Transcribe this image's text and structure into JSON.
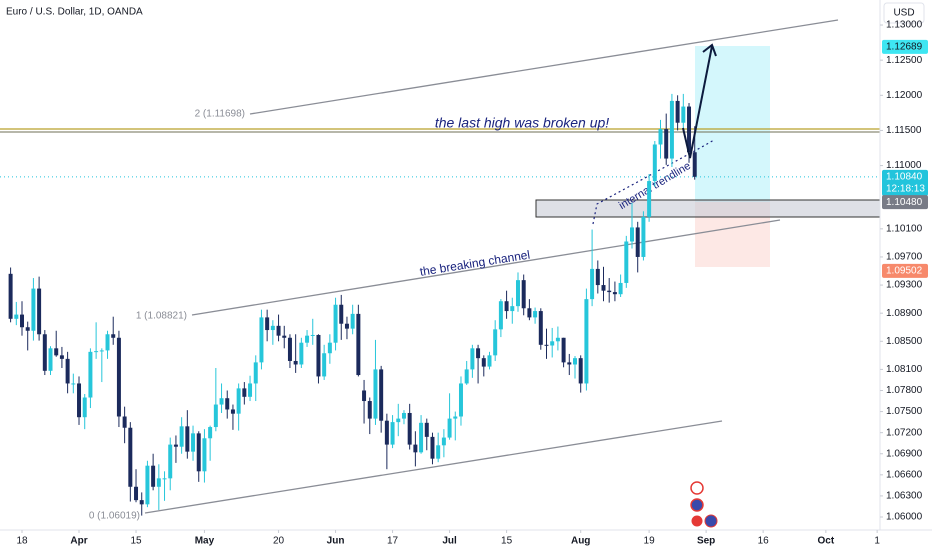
{
  "header": {
    "title": "Euro / U.S. Dollar, 1D, OANDA",
    "currency": "USD"
  },
  "chart_data": {
    "type": "candlestick",
    "up_color": "#26c6da",
    "down_color": "#1b2a5c",
    "grid": false,
    "xlim": [
      -1.86,
      152.5
    ],
    "ylim": [
      1.05815,
      1.13356
    ],
    "xticks": [
      {
        "value": 2,
        "label": "18"
      },
      {
        "value": 12,
        "label": "Apr"
      },
      {
        "value": 22,
        "label": "15"
      },
      {
        "value": 34,
        "label": "May"
      },
      {
        "value": 47,
        "label": "20"
      },
      {
        "value": 57,
        "label": "Jun"
      },
      {
        "value": 67,
        "label": "17"
      },
      {
        "value": 77,
        "label": "Jul"
      },
      {
        "value": 87,
        "label": "15"
      },
      {
        "value": 100,
        "label": "Aug"
      },
      {
        "value": 112,
        "label": "19"
      },
      {
        "value": 122,
        "label": "Sep"
      },
      {
        "value": 132,
        "label": "16"
      },
      {
        "value": 143,
        "label": "Oct"
      },
      {
        "value": 152,
        "label": "1"
      }
    ],
    "yticks": [
      {
        "value": 1.13,
        "label": "1.13000"
      },
      {
        "value": 1.125,
        "label": "1.12500"
      },
      {
        "value": 1.12,
        "label": "1.12000"
      },
      {
        "value": 1.115,
        "label": "1.11500"
      },
      {
        "value": 1.11,
        "label": "1.11000"
      },
      {
        "value": 1.101,
        "label": "1.10100"
      },
      {
        "value": 1.097,
        "label": "1.09700"
      },
      {
        "value": 1.093,
        "label": "1.09300"
      },
      {
        "value": 1.089,
        "label": "1.08900"
      },
      {
        "value": 1.085,
        "label": "1.08500"
      },
      {
        "value": 1.081,
        "label": "1.08100"
      },
      {
        "value": 1.078,
        "label": "1.07800"
      },
      {
        "value": 1.075,
        "label": "1.07500"
      },
      {
        "value": 1.072,
        "label": "1.07200"
      },
      {
        "value": 1.069,
        "label": "1.06900"
      },
      {
        "value": 1.066,
        "label": "1.06600"
      },
      {
        "value": 1.063,
        "label": "1.06300"
      },
      {
        "value": 1.06,
        "label": "1.06000"
      }
    ],
    "price_markers": [
      {
        "value": 1.12689,
        "color": "#3ee6f2",
        "text_color": "#131722"
      },
      {
        "value": 1.1084,
        "label": "1.10840",
        "color": "#22c4dc",
        "text_color": "#ffffff",
        "countdown": "12:18:13"
      },
      {
        "value": 1.1048,
        "label": "1.10480",
        "color": "#787b86",
        "text_color": "#ffffff"
      },
      {
        "value": 1.09502,
        "color": "#f7896b",
        "text_color": "#ffffff"
      }
    ],
    "annotations": {
      "fib_2": "2 (1.11698)",
      "fib_1": "1 (1.08821)",
      "fib_0": "0 (1.06019)",
      "high_note": "the last high was broken up!",
      "channel_note": "the breaking channel",
      "trend_note": "internal trendline"
    },
    "ohlc": [
      [
        1.0946,
        1.0955,
        1.0877,
        1.0882
      ],
      [
        1.0882,
        1.0906,
        1.0873,
        1.0888
      ],
      [
        1.0888,
        1.0907,
        1.0858,
        1.087
      ],
      [
        1.087,
        1.0878,
        1.0837,
        1.0865
      ],
      [
        1.0865,
        1.094,
        1.0851,
        1.0925
      ],
      [
        1.0925,
        1.0942,
        1.0851,
        1.086
      ],
      [
        1.086,
        1.0866,
        1.0802,
        1.0808
      ],
      [
        1.0808,
        1.0843,
        1.0802,
        1.084
      ],
      [
        1.084,
        1.0865,
        1.0828,
        1.083
      ],
      [
        1.083,
        1.0842,
        1.0812,
        1.0825
      ],
      [
        1.0825,
        1.0835,
        1.0776,
        1.079
      ],
      [
        1.079,
        1.0804,
        1.0776,
        1.079
      ],
      [
        1.079,
        1.08,
        1.0731,
        1.0742
      ],
      [
        1.0742,
        1.0775,
        1.0725,
        1.077
      ],
      [
        1.077,
        1.084,
        1.0755,
        1.0835
      ],
      [
        1.0835,
        1.0877,
        1.0825,
        1.0836
      ],
      [
        1.0836,
        1.084,
        1.0792,
        1.0837
      ],
      [
        1.0837,
        1.0865,
        1.0825,
        1.086
      ],
      [
        1.086,
        1.0885,
        1.0845,
        1.0855
      ],
      [
        1.0855,
        1.0865,
        1.0728,
        1.0743
      ],
      [
        1.0743,
        1.0757,
        1.0705,
        1.0727
      ],
      [
        1.0727,
        1.0735,
        1.0622,
        1.0643
      ],
      [
        1.0643,
        1.0668,
        1.0621,
        1.0624
      ],
      [
        1.0624,
        1.0635,
        1.0602,
        1.0618
      ],
      [
        1.0618,
        1.068,
        1.0614,
        1.0673
      ],
      [
        1.0673,
        1.069,
        1.0638,
        1.0643
      ],
      [
        1.0643,
        1.0675,
        1.061,
        1.0655
      ],
      [
        1.0655,
        1.0665,
        1.0623,
        1.0655
      ],
      [
        1.0655,
        1.0713,
        1.0638,
        1.0703
      ],
      [
        1.0703,
        1.0716,
        1.0677,
        1.07
      ],
      [
        1.07,
        1.0742,
        1.069,
        1.0729
      ],
      [
        1.0729,
        1.0752,
        1.0683,
        1.0693
      ],
      [
        1.0693,
        1.073,
        1.068,
        1.0719
      ],
      [
        1.0719,
        1.0722,
        1.065,
        1.0665
      ],
      [
        1.0665,
        1.0725,
        1.0649,
        1.0712
      ],
      [
        1.0712,
        1.073,
        1.068,
        1.0728
      ],
      [
        1.0728,
        1.0812,
        1.0722,
        1.076
      ],
      [
        1.076,
        1.079,
        1.0748,
        1.0769
      ],
      [
        1.0769,
        1.078,
        1.074,
        1.0753
      ],
      [
        1.0753,
        1.076,
        1.0724,
        1.0747
      ],
      [
        1.0747,
        1.079,
        1.0723,
        1.0783
      ],
      [
        1.0783,
        1.0792,
        1.076,
        1.0771
      ],
      [
        1.0771,
        1.0801,
        1.0765,
        1.079
      ],
      [
        1.079,
        1.083,
        1.0765,
        1.082
      ],
      [
        1.082,
        1.0895,
        1.081,
        1.0884
      ],
      [
        1.0884,
        1.0895,
        1.085,
        1.0866
      ],
      [
        1.0866,
        1.088,
        1.0845,
        1.0872
      ],
      [
        1.0872,
        1.0888,
        1.085,
        1.0858
      ],
      [
        1.0858,
        1.0872,
        1.084,
        1.0855
      ],
      [
        1.0855,
        1.086,
        1.0812,
        1.0822
      ],
      [
        1.0822,
        1.086,
        1.0805,
        1.0817
      ],
      [
        1.0817,
        1.0855,
        1.0812,
        1.0848
      ],
      [
        1.0848,
        1.0866,
        1.0842,
        1.0858
      ],
      [
        1.0858,
        1.0882,
        1.0845,
        1.0859
      ],
      [
        1.0859,
        1.086,
        1.079,
        1.08
      ],
      [
        1.08,
        1.0845,
        1.0795,
        1.0833
      ],
      [
        1.0833,
        1.086,
        1.0818,
        1.0848
      ],
      [
        1.0848,
        1.0912,
        1.0837,
        1.0902
      ],
      [
        1.0902,
        1.0916,
        1.0852,
        1.0875
      ],
      [
        1.0875,
        1.0885,
        1.0853,
        1.0868
      ],
      [
        1.0868,
        1.0902,
        1.086,
        1.0889
      ],
      [
        1.0889,
        1.0902,
        1.08,
        1.0802
      ],
      [
        1.078,
        1.0795,
        1.0733,
        1.0765
      ],
      [
        1.0765,
        1.077,
        1.0718,
        1.074
      ],
      [
        1.074,
        1.0852,
        1.0731,
        1.081
      ],
      [
        1.081,
        1.0815,
        1.072,
        1.0737
      ],
      [
        1.0737,
        1.0747,
        1.0668,
        1.0703
      ],
      [
        1.0703,
        1.0745,
        1.0698,
        1.0735
      ],
      [
        1.0735,
        1.0761,
        1.0715,
        1.074
      ],
      [
        1.074,
        1.0752,
        1.0732,
        1.0748
      ],
      [
        1.0748,
        1.0761,
        1.0696,
        1.0703
      ],
      [
        1.0703,
        1.0722,
        1.0672,
        1.0692
      ],
      [
        1.0692,
        1.0745,
        1.069,
        1.0734
      ],
      [
        1.0734,
        1.074,
        1.0695,
        1.0714
      ],
      [
        1.0714,
        1.072,
        1.0675,
        1.0683
      ],
      [
        1.0683,
        1.072,
        1.0678,
        1.0702
      ],
      [
        1.0702,
        1.0725,
        1.0685,
        1.0713
      ],
      [
        1.0713,
        1.0776,
        1.071,
        1.074
      ],
      [
        1.074,
        1.075,
        1.0709,
        1.0743
      ],
      [
        1.0743,
        1.08,
        1.073,
        1.079
      ],
      [
        1.079,
        1.0822,
        1.0788,
        1.081
      ],
      [
        1.081,
        1.0845,
        1.0798,
        1.084
      ],
      [
        1.084,
        1.0845,
        1.079,
        1.0826
      ],
      [
        1.0826,
        1.083,
        1.08,
        1.0814
      ],
      [
        1.0814,
        1.0835,
        1.081,
        1.083
      ],
      [
        1.083,
        1.088,
        1.0822,
        1.0867
      ],
      [
        1.0867,
        1.091,
        1.0856,
        1.0907
      ],
      [
        1.0907,
        1.0922,
        1.0882,
        1.0893
      ],
      [
        1.0893,
        1.0912,
        1.0875,
        1.09
      ],
      [
        1.09,
        1.0948,
        1.0892,
        1.0937
      ],
      [
        1.0937,
        1.0945,
        1.0887,
        1.0897
      ],
      [
        1.0897,
        1.091,
        1.088,
        1.0884
      ],
      [
        1.0884,
        1.0898,
        1.0875,
        1.0893
      ],
      [
        1.0893,
        1.0897,
        1.0838,
        1.0845
      ],
      [
        1.0845,
        1.0868,
        1.0825,
        1.0844
      ],
      [
        1.0844,
        1.0869,
        1.0827,
        1.085
      ],
      [
        1.085,
        1.0871,
        1.0837,
        1.0855
      ],
      [
        1.0855,
        1.0855,
        1.0813,
        1.082
      ],
      [
        1.082,
        1.0832,
        1.0802,
        1.0817
      ],
      [
        1.0817,
        1.0829,
        1.0797,
        1.0826
      ],
      [
        1.0826,
        1.083,
        1.0777,
        1.079
      ],
      [
        1.079,
        1.0925,
        1.078,
        1.091
      ],
      [
        1.091,
        1.1009,
        1.09,
        1.0953
      ],
      [
        1.0953,
        1.0965,
        1.0918,
        1.093
      ],
      [
        1.093,
        1.0956,
        1.0907,
        1.0922
      ],
      [
        1.0922,
        1.094,
        1.0905,
        1.092
      ],
      [
        1.092,
        1.0935,
        1.0907,
        1.0917
      ],
      [
        1.0917,
        1.0945,
        1.0913,
        1.0933
      ],
      [
        1.0933,
        1.1,
        1.0926,
        1.0992
      ],
      [
        1.0992,
        1.1047,
        1.0982,
        1.1012
      ],
      [
        1.1012,
        1.102,
        1.0948,
        1.097
      ],
      [
        1.097,
        1.1035,
        1.0965,
        1.1027
      ],
      [
        1.1027,
        1.1088,
        1.102,
        1.1078
      ],
      [
        1.1078,
        1.1135,
        1.107,
        1.113
      ],
      [
        1.113,
        1.1165,
        1.111,
        1.1152
      ],
      [
        1.1152,
        1.1174,
        1.1101,
        1.111
      ],
      [
        1.111,
        1.1202,
        1.1098,
        1.1192
      ],
      [
        1.1192,
        1.12,
        1.115,
        1.1161
      ],
      [
        1.1161,
        1.1202,
        1.115,
        1.1184
      ],
      [
        1.1184,
        1.1189,
        1.1104,
        1.1119
      ],
      [
        1.1119,
        1.1156,
        1.108,
        1.1084
      ]
    ]
  }
}
